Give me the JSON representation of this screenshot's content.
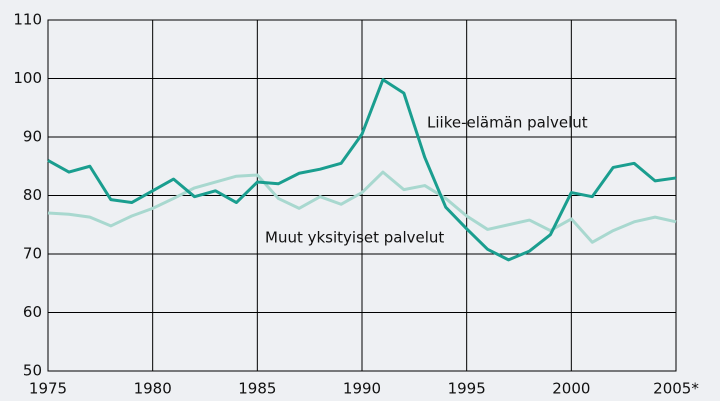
{
  "chart_data": {
    "type": "line",
    "x": [
      1975,
      1976,
      1977,
      1978,
      1979,
      1980,
      1981,
      1982,
      1983,
      1984,
      1985,
      1986,
      1987,
      1988,
      1989,
      1990,
      1991,
      1992,
      1993,
      1994,
      1995,
      1996,
      1997,
      1998,
      1999,
      2000,
      2001,
      2002,
      2003,
      2004,
      2005
    ],
    "series": [
      {
        "name": "Liike-elämän palvelut",
        "color": "#1a9e8f",
        "values": [
          86,
          84,
          85,
          79.3,
          78.8,
          80.8,
          82.8,
          79.8,
          80.8,
          78.8,
          82.3,
          82,
          83.8,
          84.5,
          85.5,
          90.5,
          99.8,
          97.5,
          86.5,
          78,
          74.3,
          70.8,
          69,
          70.5,
          73.3,
          80.5,
          79.8,
          84.8,
          85.5,
          82.5,
          83
        ]
      },
      {
        "name": "Muut yksityiset palvelut",
        "color": "#a8d8cf",
        "values": [
          77,
          76.8,
          76.3,
          74.8,
          76.5,
          77.8,
          79.5,
          81.3,
          82.3,
          83.3,
          83.5,
          79.5,
          77.8,
          79.8,
          78.5,
          80.5,
          84,
          81,
          81.7,
          79.5,
          76.5,
          74.2,
          75,
          75.8,
          74,
          76,
          72,
          74,
          75.5,
          76.3,
          75.5
        ]
      }
    ],
    "xlim": [
      1975,
      2005
    ],
    "xticks": [
      1975,
      1980,
      1985,
      1990,
      1995,
      2000,
      {
        "value": 2005,
        "label": "2005*"
      }
    ],
    "ylim": [
      50,
      110
    ],
    "yticks": [
      50,
      60,
      70,
      80,
      90,
      100,
      110
    ],
    "grid": true
  }
}
